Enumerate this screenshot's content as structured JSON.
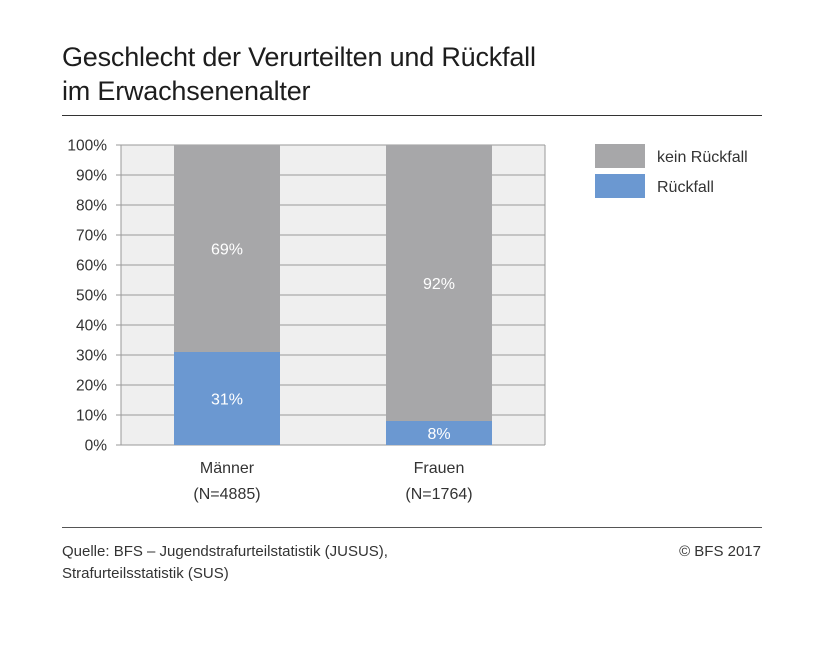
{
  "title_lines": [
    "Geschlecht der Verurteilten und Rückfall",
    "im Erwachsenenalter"
  ],
  "source_lines": [
    "Quelle: BFS – Jugendstrafurteilstatistik (JUSUS),",
    "Strafurteilsstatistik (SUS)"
  ],
  "copyright": "© BFS 2017",
  "colors": {
    "kein_rueckfall": "#a7a7a9",
    "rueckfall": "#6b98d1",
    "plot_background": "#efefef",
    "gridline": "#9a9a9a",
    "bar_label": "#ffffff"
  },
  "chart_data": {
    "type": "bar",
    "stacked": true,
    "categories": [
      [
        "Männer",
        "(N=4885)"
      ],
      [
        "Frauen",
        "(N=1764)"
      ]
    ],
    "series": [
      {
        "name": "Rückfall",
        "values": [
          31,
          8
        ],
        "labels": [
          "31%",
          "8%"
        ],
        "color_key": "rueckfall"
      },
      {
        "name": "kein Rückfall",
        "values": [
          69,
          92
        ],
        "labels": [
          "69%",
          "92%"
        ],
        "color_key": "kein_rueckfall"
      }
    ],
    "ylim": [
      0,
      100
    ],
    "yticks": [
      0,
      10,
      20,
      30,
      40,
      50,
      60,
      70,
      80,
      90,
      100
    ],
    "ytick_labels": [
      "0%",
      "10%",
      "20%",
      "30%",
      "40%",
      "50%",
      "60%",
      "70%",
      "80%",
      "90%",
      "100%"
    ],
    "legend": {
      "placement": "right",
      "entries": [
        {
          "label": "kein Rückfall",
          "color_key": "kein_rueckfall"
        },
        {
          "label": "Rückfall",
          "color_key": "rueckfall"
        }
      ]
    },
    "grid": true
  }
}
